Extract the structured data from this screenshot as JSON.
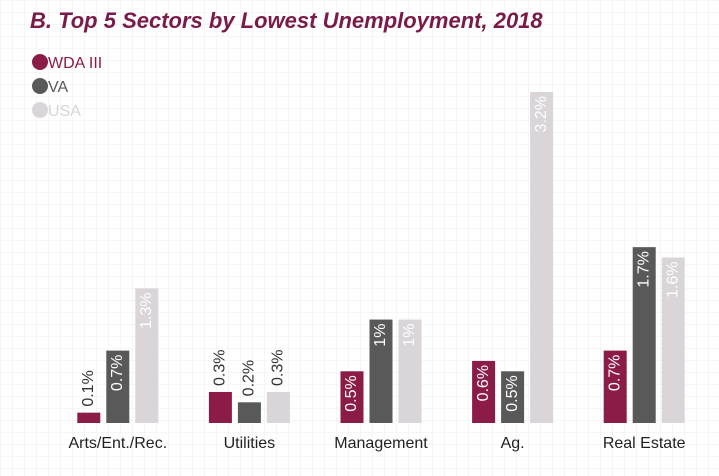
{
  "chart_data": {
    "type": "bar",
    "title": "B. Top 5 Sectors by Lowest Unemployment, 2018",
    "categories": [
      "Arts/Ent./Rec.",
      "Utilities",
      "Management",
      "Ag.",
      "Real Estate"
    ],
    "series": [
      {
        "name": "WDA III",
        "color": "#8b1c47",
        "values": [
          0.1,
          0.3,
          0.5,
          0.6,
          0.7
        ],
        "value_labels": [
          "0.1%",
          "0.3%",
          "0.5%",
          "0.6%",
          "0.7%"
        ]
      },
      {
        "name": "VA",
        "color": "#595959",
        "values": [
          0.7,
          0.2,
          1,
          0.5,
          1.7
        ],
        "value_labels": [
          "0.7%",
          "0.2%",
          "1%",
          "0.5%",
          "1.7%"
        ]
      },
      {
        "name": "USA",
        "color": "#d9d5d9",
        "values": [
          1.3,
          0.3,
          1,
          3.2,
          1.6
        ],
        "value_labels": [
          "1.3%",
          "0.3%",
          "1%",
          "3.2%",
          "1.6%"
        ]
      }
    ],
    "ylim": [
      0,
      3.2
    ],
    "legend": "top-left"
  }
}
